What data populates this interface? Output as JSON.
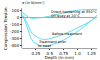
{
  "chart_data": {
    "type": "line",
    "xlabel": "Depth (in mm)",
    "ylabel_upper": "Tension",
    "ylabel_lower": "Compression",
    "unit_label": "σ (in N/mm²)",
    "annotations": [
      "Direct hardening at 850°C",
      "Oil quay at 20°C",
      "Before treatment",
      "Treatment prior",
      "to treat"
    ],
    "xlim": [
      0,
      1.35
    ],
    "xticks": [
      0.25,
      0.5,
      0.75,
      {
        "value": 1.0,
        "label": "1.0"
      },
      1.25
    ],
    "ylim": [
      -430,
      130
    ],
    "yticks": [
      100,
      0,
      -100,
      -200,
      -300,
      -400
    ],
    "grid": false,
    "series": [
      {
        "color": "#66ddee",
        "x": [
          0.0,
          0.04,
          0.08,
          0.12,
          0.18,
          0.25,
          0.35,
          0.5,
          0.65,
          0.8,
          0.95,
          1.1,
          1.25,
          1.35
        ],
        "values": [
          70,
          50,
          20,
          0,
          -15,
          -15,
          -5,
          15,
          45,
          75,
          95,
          105,
          110,
          112
        ]
      },
      {
        "color": "#66ddee",
        "x": [
          0.0,
          0.04,
          0.08,
          0.12,
          0.16,
          0.2,
          0.25,
          0.3,
          0.35,
          0.4,
          0.48,
          0.55,
          0.65,
          0.75,
          0.85,
          0.95,
          1.05,
          1.15,
          1.25,
          1.35
        ],
        "values": [
          40,
          0,
          -60,
          -130,
          -200,
          -240,
          -270,
          -290,
          -305,
          -310,
          -305,
          -290,
          -265,
          -240,
          -205,
          -170,
          -130,
          -90,
          -45,
          5
        ]
      },
      {
        "color": "#66ddee",
        "x": [
          0.0,
          0.04,
          0.08,
          0.12,
          0.16,
          0.2,
          0.25,
          0.3,
          0.35,
          0.4,
          0.48,
          0.55,
          0.65,
          0.75,
          0.85,
          0.95,
          1.05,
          1.15,
          1.25,
          1.35
        ],
        "values": [
          20,
          -30,
          -110,
          -210,
          -290,
          -340,
          -370,
          -390,
          -400,
          -405,
          -400,
          -385,
          -355,
          -320,
          -275,
          -225,
          -170,
          -110,
          -45,
          30
        ]
      }
    ]
  }
}
